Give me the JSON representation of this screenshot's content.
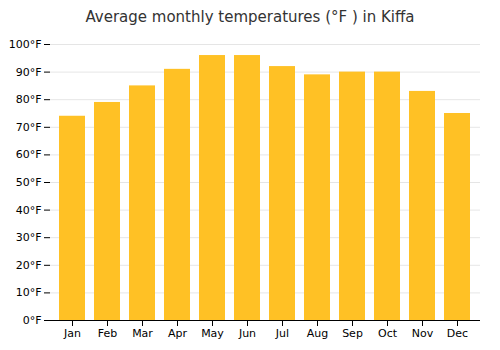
{
  "chart_data": {
    "type": "bar",
    "title": "Average monthly temperatures (°F ) in Kiffa",
    "categories": [
      "Jan",
      "Feb",
      "Mar",
      "Apr",
      "May",
      "Jun",
      "Jul",
      "Aug",
      "Sep",
      "Oct",
      "Nov",
      "Dec"
    ],
    "values": [
      74,
      79,
      85,
      91,
      96,
      96,
      92,
      89,
      90,
      90,
      83,
      75
    ],
    "color": "#FFC125",
    "ylim": [
      0,
      100
    ],
    "yticks": [
      {
        "value": 0,
        "label": "0°F"
      },
      {
        "value": 10,
        "label": "10°F"
      },
      {
        "value": 20,
        "label": "20°F"
      },
      {
        "value": 30,
        "label": "30°F"
      },
      {
        "value": 40,
        "label": "40°F"
      },
      {
        "value": 50,
        "label": "50°F"
      },
      {
        "value": 60,
        "label": "60°F"
      },
      {
        "value": 70,
        "label": "70°F"
      },
      {
        "value": 80,
        "label": "80°F"
      },
      {
        "value": 90,
        "label": "90°F"
      },
      {
        "value": 100,
        "label": "100°F"
      }
    ],
    "grid": true
  }
}
